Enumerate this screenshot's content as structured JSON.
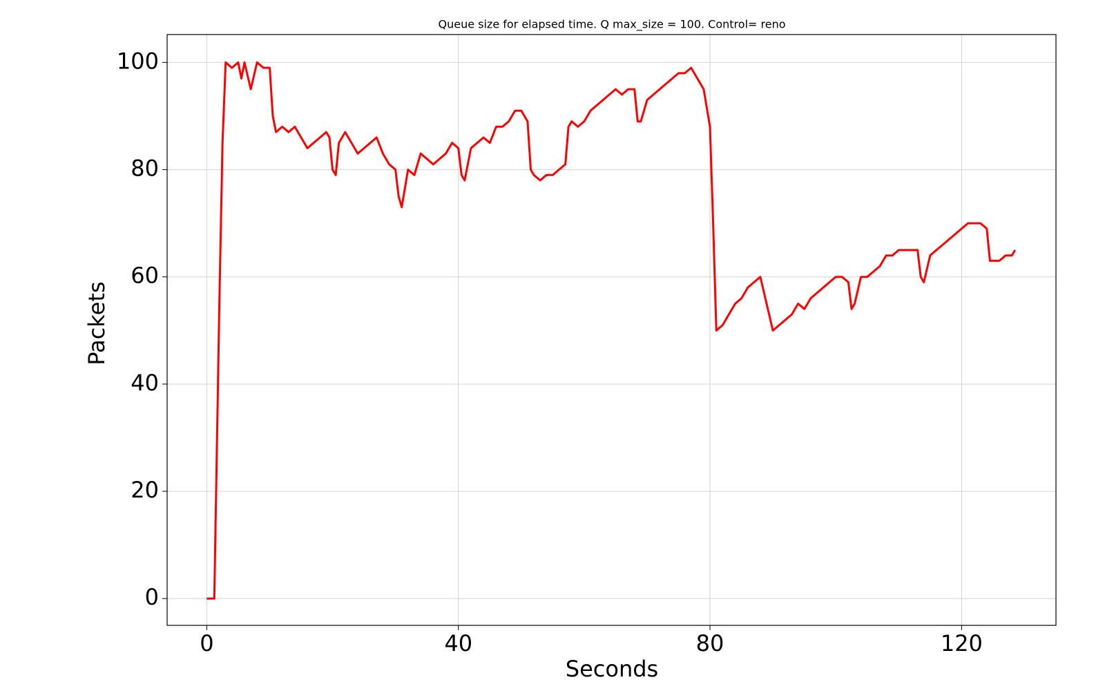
{
  "chart_data": {
    "type": "line",
    "title": "Queue size for elapsed time. Q max_size = 100. Control= reno",
    "x_label": "Seconds",
    "y_label": "Packets",
    "x": [
      0,
      1.2,
      2,
      2.5,
      3,
      4,
      5,
      5.5,
      6,
      7,
      8,
      9,
      10,
      10.5,
      11,
      12,
      13,
      14,
      15,
      16,
      17,
      18,
      19,
      19.5,
      20,
      20.5,
      21,
      22,
      23,
      24,
      25,
      26,
      27,
      28,
      29,
      30,
      30.5,
      31,
      32,
      33,
      34,
      35,
      36,
      37,
      38,
      39,
      40,
      40.5,
      41,
      42,
      43,
      44,
      45,
      46,
      47,
      48,
      49,
      50,
      51,
      51.5,
      52,
      53,
      54,
      55,
      56,
      57,
      57.5,
      58,
      59,
      60,
      61,
      62,
      63,
      64,
      65,
      66,
      67,
      68,
      68.5,
      69,
      70,
      71,
      72,
      73,
      74,
      75,
      76,
      77,
      78,
      79,
      80,
      80.5,
      81,
      82,
      83,
      84,
      85,
      86,
      87,
      88,
      89,
      90,
      91,
      92,
      93,
      94,
      95,
      96,
      97,
      98,
      99,
      100,
      101,
      102,
      102.5,
      103,
      104,
      105,
      106,
      107,
      108,
      109,
      110,
      111,
      112,
      113,
      113.5,
      114,
      115,
      116,
      117,
      118,
      119,
      120,
      121,
      122,
      123,
      124,
      124.5,
      125,
      126,
      127,
      128,
      128.5
    ],
    "series": [
      {
        "name": "Queue size",
        "color": "#ff0000",
        "values": [
          0,
          0,
          55,
          85,
          100,
          99,
          100,
          97,
          100,
          95,
          100,
          99,
          99,
          90,
          87,
          88,
          87,
          88,
          86,
          84,
          85,
          86,
          87,
          86,
          80,
          79,
          85,
          87,
          85,
          83,
          84,
          85,
          86,
          83,
          81,
          80,
          75,
          73,
          80,
          79,
          83,
          82,
          81,
          82,
          83,
          85,
          84,
          79,
          78,
          84,
          85,
          86,
          85,
          88,
          88,
          89,
          91,
          91,
          89,
          80,
          79,
          78,
          79,
          79,
          80,
          81,
          88,
          89,
          88,
          89,
          91,
          92,
          93,
          94,
          95,
          94,
          95,
          95,
          89,
          89,
          93,
          94,
          95,
          96,
          97,
          98,
          98,
          99,
          97,
          95,
          88,
          70,
          50,
          51,
          53,
          55,
          56,
          58,
          59,
          60,
          55,
          50,
          51,
          52,
          53,
          55,
          54,
          56,
          57,
          58,
          59,
          60,
          60,
          59,
          54,
          55,
          60,
          60,
          61,
          62,
          64,
          64,
          65,
          65,
          65,
          65,
          60,
          59,
          64,
          65,
          66,
          67,
          68,
          69,
          70,
          70,
          70,
          69,
          63,
          63,
          63,
          64,
          64,
          65
        ]
      }
    ],
    "xlim": [
      -6.3,
      135
    ],
    "ylim": [
      -5,
      105.2
    ],
    "xticks": [
      0,
      40,
      80,
      120
    ],
    "yticks": [
      0,
      20,
      40,
      60,
      80,
      100
    ],
    "grid": true
  }
}
